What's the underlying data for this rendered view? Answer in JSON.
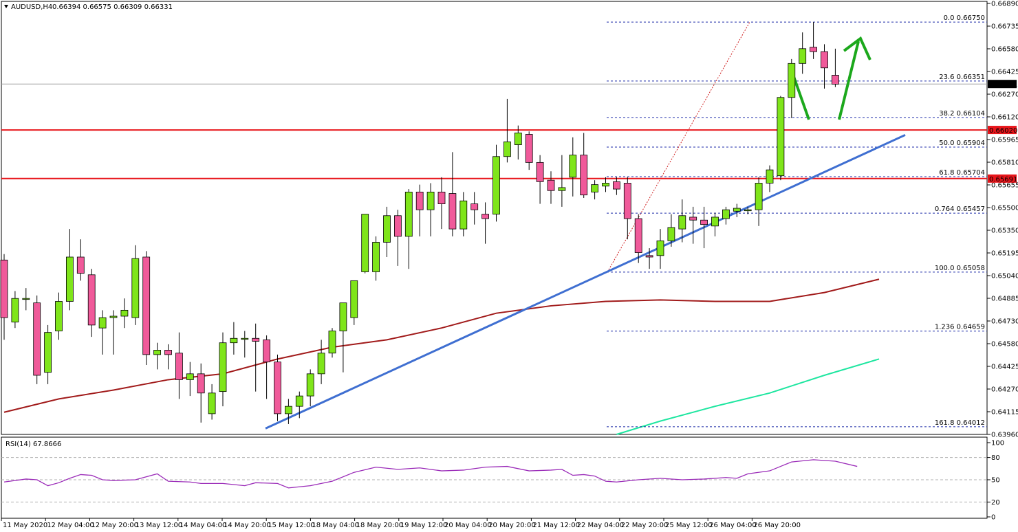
{
  "header": {
    "symbol": "AUDUSD,H4",
    "ohlc": "0.66394 0.66575 0.66309 0.66331"
  },
  "colors": {
    "bull": "#7fe51a",
    "bear": "#f05a9a",
    "wick": "#000000",
    "resistance": "#e8161b",
    "trendline": "#3f6fd1",
    "ma_slow": "#a11a1a",
    "ma_fast": "#1ee6a0",
    "fib": "#1b2aa8",
    "fib_diag": "#d02020",
    "arrow": "#1ca81c",
    "rsi": "#9a2ab8",
    "current": "#a0a0a0"
  },
  "rsi_panel": {
    "title": "RSI(14) 67.8666",
    "levels": [
      "100",
      "80",
      "50",
      "20",
      "0"
    ]
  },
  "chart_data": {
    "type": "candlestick",
    "ylim": [
      0.6396,
      0.6689
    ],
    "y_ticks": [
      "0.66890",
      "0.66735",
      "0.66580",
      "0.66425",
      "0.66270",
      "0.66120",
      "0.65965",
      "0.65810",
      "0.65655",
      "0.65500",
      "0.65350",
      "0.65195",
      "0.65040",
      "0.64885",
      "0.64730",
      "0.64580",
      "0.64425",
      "0.64270",
      "0.64115",
      "0.63960"
    ],
    "x_ticks": [
      "11 May 2020",
      "12 May 04:00",
      "12 May 20:00",
      "13 May 12:00",
      "14 May 04:00",
      "14 May 20:00",
      "15 May 12:00",
      "18 May 04:00",
      "18 May 20:00",
      "19 May 12:00",
      "20 May 04:00",
      "20 May 20:00",
      "21 May 12:00",
      "22 May 04:00",
      "22 May 20:00",
      "25 May 12:00",
      "26 May 04:00",
      "26 May 20:00"
    ],
    "candles": [
      [
        0.6514,
        0.6518,
        0.646,
        0.6475
      ],
      [
        0.6472,
        0.6493,
        0.6468,
        0.6488
      ],
      [
        0.6488,
        0.6495,
        0.648,
        0.6488
      ],
      [
        0.6485,
        0.649,
        0.643,
        0.6436
      ],
      [
        0.6438,
        0.647,
        0.643,
        0.6465
      ],
      [
        0.6466,
        0.6492,
        0.646,
        0.6486
      ],
      [
        0.6486,
        0.6535,
        0.648,
        0.6516
      ],
      [
        0.6516,
        0.6528,
        0.65,
        0.6505
      ],
      [
        0.6504,
        0.6508,
        0.6462,
        0.647
      ],
      [
        0.6468,
        0.648,
        0.645,
        0.6475
      ],
      [
        0.6475,
        0.648,
        0.645,
        0.6476
      ],
      [
        0.6476,
        0.6488,
        0.6468,
        0.648
      ],
      [
        0.6475,
        0.6524,
        0.647,
        0.6515
      ],
      [
        0.6516,
        0.652,
        0.6443,
        0.645
      ],
      [
        0.645,
        0.6458,
        0.644,
        0.6453
      ],
      [
        0.6453,
        0.6457,
        0.644,
        0.645
      ],
      [
        0.6451,
        0.6465,
        0.642,
        0.6433
      ],
      [
        0.6433,
        0.6445,
        0.6422,
        0.6437
      ],
      [
        0.6437,
        0.6444,
        0.6404,
        0.6424
      ],
      [
        0.641,
        0.643,
        0.6406,
        0.6424
      ],
      [
        0.6425,
        0.6465,
        0.6415,
        0.6458
      ],
      [
        0.6458,
        0.6472,
        0.645,
        0.6461
      ],
      [
        0.6461,
        0.6466,
        0.6448,
        0.6461
      ],
      [
        0.6461,
        0.6471,
        0.6425,
        0.6459
      ],
      [
        0.646,
        0.6463,
        0.642,
        0.6445
      ],
      [
        0.6445,
        0.645,
        0.6405,
        0.641
      ],
      [
        0.641,
        0.642,
        0.6403,
        0.6415
      ],
      [
        0.6415,
        0.6425,
        0.6407,
        0.6422
      ],
      [
        0.6422,
        0.644,
        0.6415,
        0.6437
      ],
      [
        0.6437,
        0.646,
        0.643,
        0.6451
      ],
      [
        0.6451,
        0.6468,
        0.6448,
        0.6466
      ],
      [
        0.6466,
        0.6485,
        0.6438,
        0.6485
      ],
      [
        0.6475,
        0.65,
        0.647,
        0.65
      ],
      [
        0.6506,
        0.6545,
        0.6505,
        0.6545
      ],
      [
        0.6506,
        0.653,
        0.65,
        0.6526
      ],
      [
        0.6526,
        0.655,
        0.6516,
        0.6544
      ],
      [
        0.6544,
        0.6548,
        0.651,
        0.653
      ],
      [
        0.653,
        0.6562,
        0.6508,
        0.656
      ],
      [
        0.656,
        0.6565,
        0.653,
        0.6548
      ],
      [
        0.6548,
        0.6566,
        0.653,
        0.656
      ],
      [
        0.656,
        0.657,
        0.6535,
        0.6552
      ],
      [
        0.6559,
        0.6587,
        0.653,
        0.6535
      ],
      [
        0.6535,
        0.656,
        0.653,
        0.6554
      ],
      [
        0.6552,
        0.656,
        0.6538,
        0.6548
      ],
      [
        0.6545,
        0.6553,
        0.6525,
        0.6542
      ],
      [
        0.6545,
        0.6592,
        0.654,
        0.6584
      ],
      [
        0.6584,
        0.6623,
        0.658,
        0.6594
      ],
      [
        0.6592,
        0.6605,
        0.6582,
        0.66
      ],
      [
        0.6599,
        0.6601,
        0.6575,
        0.658
      ],
      [
        0.658,
        0.6585,
        0.6552,
        0.6567
      ],
      [
        0.6568,
        0.6574,
        0.6552,
        0.6561
      ],
      [
        0.6561,
        0.6585,
        0.655,
        0.6563
      ],
      [
        0.657,
        0.6597,
        0.6557,
        0.6585
      ],
      [
        0.6585,
        0.66,
        0.6556,
        0.6558
      ],
      [
        0.656,
        0.6568,
        0.6555,
        0.6565
      ],
      [
        0.6564,
        0.657,
        0.656,
        0.6566
      ],
      [
        0.6567,
        0.657,
        0.6558,
        0.6562
      ],
      [
        0.6566,
        0.657,
        0.6528,
        0.6542
      ],
      [
        0.6542,
        0.6545,
        0.6512,
        0.6519
      ],
      [
        0.6517,
        0.6522,
        0.6508,
        0.6516
      ],
      [
        0.6517,
        0.6535,
        0.6508,
        0.6527
      ],
      [
        0.6527,
        0.6545,
        0.6523,
        0.6536
      ],
      [
        0.6535,
        0.6555,
        0.6526,
        0.6544
      ],
      [
        0.6543,
        0.655,
        0.6525,
        0.6541
      ],
      [
        0.6541,
        0.655,
        0.6522,
        0.6538
      ],
      [
        0.6537,
        0.6546,
        0.653,
        0.6543
      ],
      [
        0.6542,
        0.655,
        0.6538,
        0.6548
      ],
      [
        0.6547,
        0.6552,
        0.6543,
        0.6549
      ],
      [
        0.6548,
        0.655,
        0.6545,
        0.6548
      ],
      [
        0.6548,
        0.657,
        0.6537,
        0.6566
      ],
      [
        0.6566,
        0.6578,
        0.656,
        0.6575
      ],
      [
        0.6571,
        0.6625,
        0.6568,
        0.6624
      ],
      [
        0.6624,
        0.665,
        0.661,
        0.6647
      ],
      [
        0.6647,
        0.6668,
        0.664,
        0.6657
      ],
      [
        0.6658,
        0.6675,
        0.665,
        0.6655
      ],
      [
        0.6655,
        0.666,
        0.663,
        0.6644
      ],
      [
        0.6639,
        0.6657,
        0.6631,
        0.6633
      ]
    ],
    "ma_slow": [
      [
        0,
        0.6411
      ],
      [
        5,
        0.642
      ],
      [
        10,
        0.6426
      ],
      [
        15,
        0.6433
      ],
      [
        20,
        0.6437
      ],
      [
        25,
        0.6447
      ],
      [
        30,
        0.6455
      ],
      [
        35,
        0.646
      ],
      [
        40,
        0.6468
      ],
      [
        45,
        0.6478
      ],
      [
        50,
        0.6483
      ],
      [
        55,
        0.6486
      ],
      [
        60,
        0.6487
      ],
      [
        65,
        0.6486
      ],
      [
        70,
        0.6486
      ],
      [
        75,
        0.6492
      ],
      [
        80,
        0.6501
      ]
    ],
    "ma_fast": [
      [
        56,
        0.6396
      ],
      [
        60,
        0.6405
      ],
      [
        65,
        0.6415
      ],
      [
        70,
        0.6424
      ],
      [
        75,
        0.6436
      ],
      [
        80,
        0.6447
      ]
    ],
    "rsi": [
      [
        0,
        47
      ],
      [
        2,
        51
      ],
      [
        3,
        50
      ],
      [
        4,
        42
      ],
      [
        5,
        46
      ],
      [
        6,
        52
      ],
      [
        7,
        57
      ],
      [
        8,
        56
      ],
      [
        9,
        50
      ],
      [
        10,
        49
      ],
      [
        12,
        50
      ],
      [
        14,
        58
      ],
      [
        15,
        48
      ],
      [
        17,
        47
      ],
      [
        18,
        45
      ],
      [
        20,
        45
      ],
      [
        22,
        42
      ],
      [
        23,
        46
      ],
      [
        25,
        45
      ],
      [
        26,
        39
      ],
      [
        28,
        42
      ],
      [
        30,
        48
      ],
      [
        32,
        60
      ],
      [
        34,
        67
      ],
      [
        36,
        64
      ],
      [
        38,
        66
      ],
      [
        40,
        62
      ],
      [
        42,
        63
      ],
      [
        44,
        67
      ],
      [
        46,
        68
      ],
      [
        48,
        62
      ],
      [
        50,
        63
      ],
      [
        51,
        64
      ],
      [
        52,
        56
      ],
      [
        53,
        57
      ],
      [
        54,
        55
      ],
      [
        55,
        48
      ],
      [
        56,
        47
      ],
      [
        58,
        50
      ],
      [
        60,
        52
      ],
      [
        62,
        50
      ],
      [
        64,
        51
      ],
      [
        66,
        53
      ],
      [
        67,
        52
      ],
      [
        68,
        58
      ],
      [
        70,
        62
      ],
      [
        72,
        74
      ],
      [
        74,
        77
      ],
      [
        76,
        75
      ],
      [
        78,
        68
      ]
    ],
    "resistance": [
      {
        "price": 0.6602,
        "label": "0.66020"
      },
      {
        "price": 0.65691,
        "label": "0.65691"
      }
    ],
    "current_price": {
      "price": 0.66331,
      "label": "0.66331"
    },
    "fib_levels": [
      {
        "price": 0.6675,
        "label": "0.0 0.66750"
      },
      {
        "price": 0.66351,
        "label": "23.6 0.66351"
      },
      {
        "price": 0.66104,
        "label": "38.2 0.66104"
      },
      {
        "price": 0.65904,
        "label": "50.0 0.65904"
      },
      {
        "price": 0.65704,
        "label": "61.8 0.65704"
      },
      {
        "price": 0.65457,
        "label": "0.764 0.65457"
      },
      {
        "price": 0.65058,
        "label": "100.0 0.65058"
      },
      {
        "price": 0.64659,
        "label": "1.236 0.64659"
      },
      {
        "price": 0.64012,
        "label": "161.8 0.64012"
      }
    ]
  }
}
